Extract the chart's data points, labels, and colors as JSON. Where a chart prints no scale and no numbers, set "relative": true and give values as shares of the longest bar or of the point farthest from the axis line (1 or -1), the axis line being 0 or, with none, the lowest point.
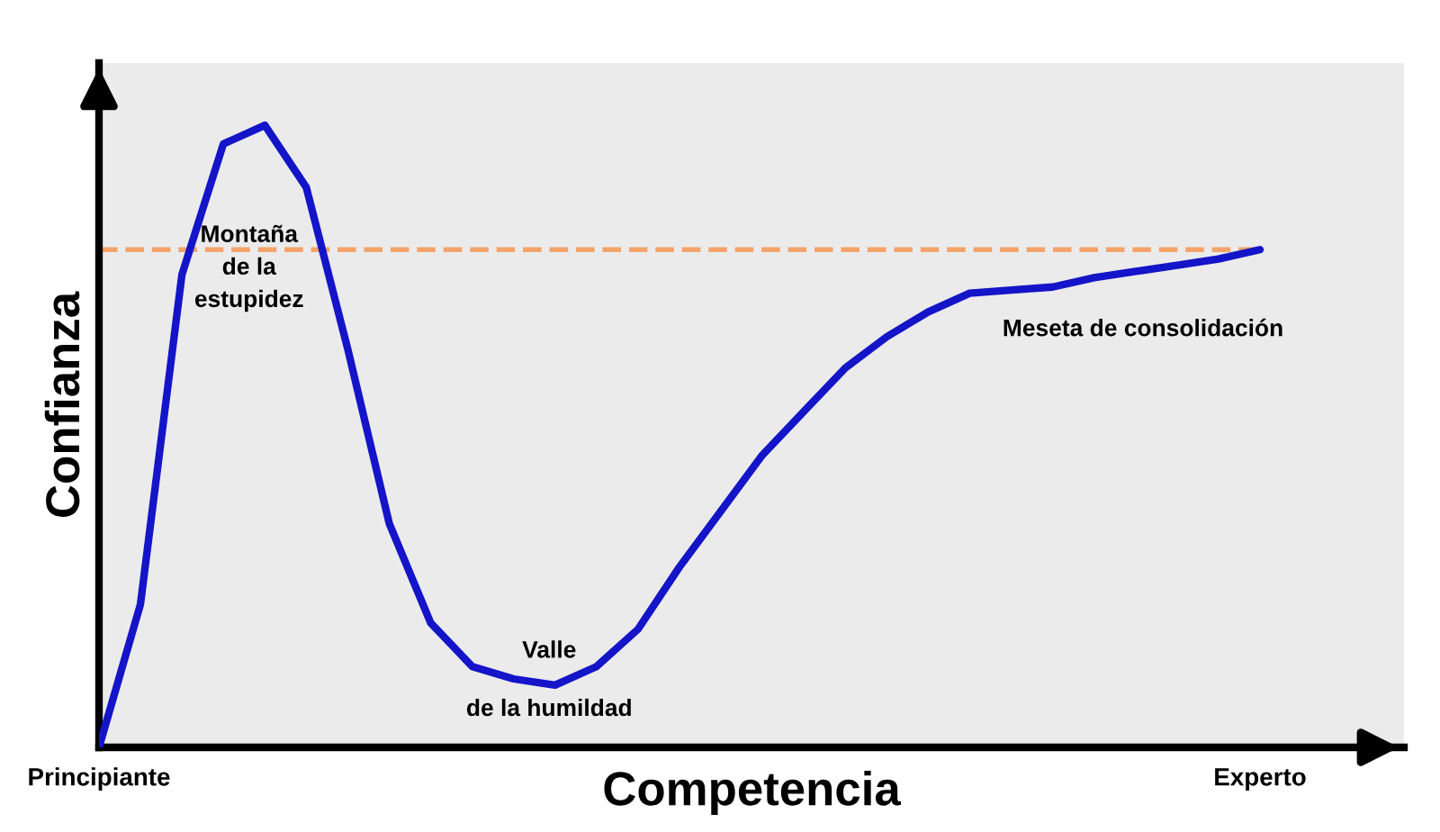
{
  "chart_data": {
    "type": "line",
    "relative": true,
    "xlabel": "Competencia",
    "ylabel": "Confianza",
    "categories": [
      "Principiante",
      null,
      null,
      null,
      null,
      null,
      null,
      null,
      null,
      null,
      null,
      null,
      null,
      null,
      null,
      null,
      null,
      null,
      null,
      null,
      null,
      null,
      null,
      null,
      null,
      null,
      null,
      null,
      "Experto"
    ],
    "series": [
      {
        "color": "#1414c8",
        "values": [
          0,
          0.23,
          0.76,
          0.97,
          1.0,
          0.9,
          0.64,
          0.36,
          0.2,
          0.13,
          0.11,
          0.1,
          0.13,
          0.19,
          0.29,
          0.38,
          0.47,
          0.54,
          0.61,
          0.66,
          0.7,
          0.73,
          0.735,
          0.74,
          0.755,
          0.765,
          0.775,
          0.785,
          0.8
        ]
      }
    ],
    "ref_lines": [
      {
        "axis": "y",
        "value": 0.8,
        "color": "#f4a36b",
        "line_style": "dashed"
      }
    ],
    "annotations": [
      "Montaña\nde la\nestupidez",
      "Valle",
      "de la humildad",
      "Meseta de consolidación"
    ],
    "grid": false,
    "legend": false,
    "marker": "none",
    "line_style": "solid"
  }
}
